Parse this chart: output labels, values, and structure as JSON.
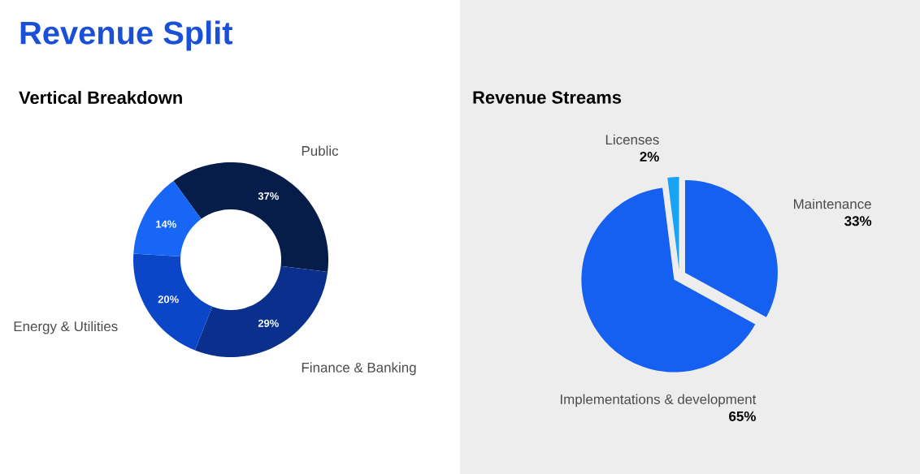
{
  "chart_data": [
    {
      "type": "donut",
      "title": "Revenue Split",
      "subtitle": "Vertical Breakdown",
      "categories": [
        "Public",
        "Finance & Banking",
        "Energy & Utilities",
        null
      ],
      "values": [
        37,
        29,
        20,
        14
      ],
      "value_labels": [
        "37%",
        "29%",
        "20%",
        "14%"
      ],
      "colors": [
        "#071d49",
        "#0a2f8c",
        "#0b46c8",
        "#1766f5"
      ]
    },
    {
      "type": "pie",
      "title": "Revenue Streams",
      "categories": [
        "Maintenance",
        "Implementations & development",
        "Licenses"
      ],
      "values": [
        33,
        65,
        2
      ],
      "value_labels": [
        "33%",
        "65%",
        "2%"
      ],
      "colors": [
        "#1560f0",
        "#1560f0",
        "#1aa3f2"
      ]
    }
  ]
}
